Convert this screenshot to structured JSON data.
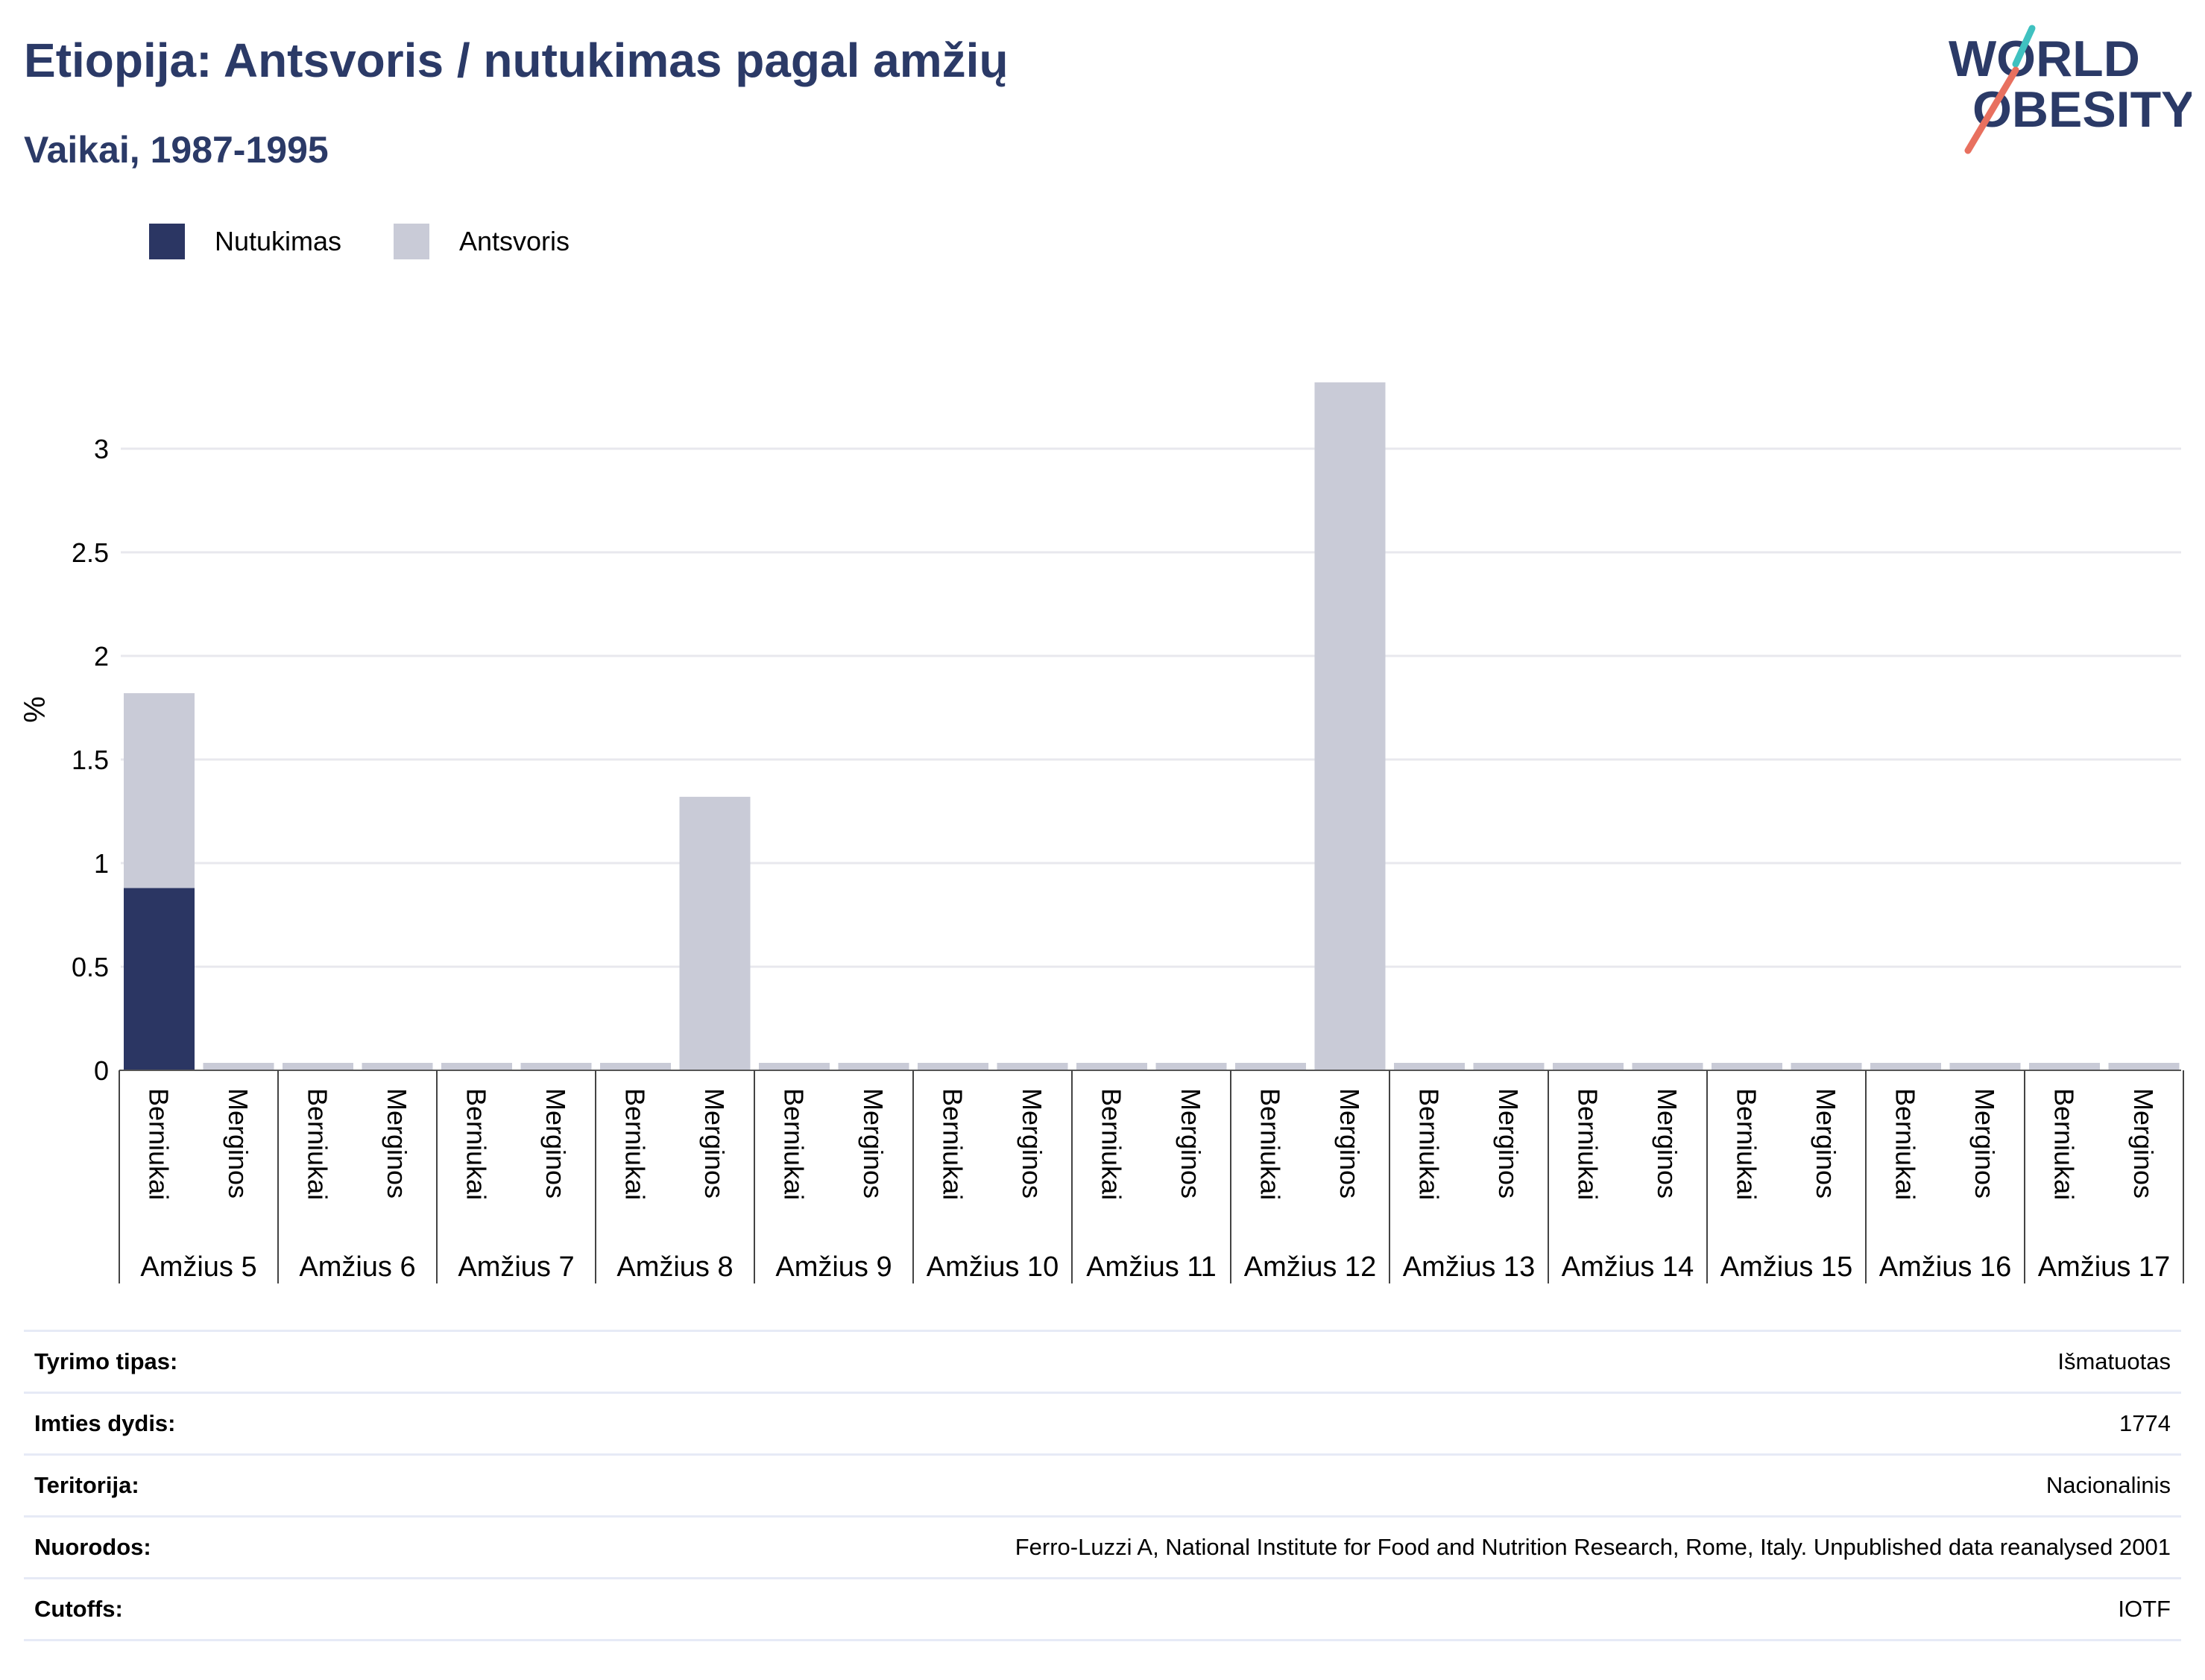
{
  "header": {
    "title": "Etiopija: Antsvoris / nutukimas pagal amžių",
    "subtitle": "Vaikai, 1987-1995"
  },
  "logo": {
    "line1": "WORLD",
    "line2": "OBESITY"
  },
  "colors": {
    "title": "#2b3a67",
    "obesity": "#2b3663",
    "overweight": "#c9cbd7",
    "grid": "#e8e8ee",
    "logo_teal": "#3fc1c0",
    "logo_coral": "#e8705f"
  },
  "chart_data": {
    "type": "bar",
    "stacked": true,
    "ylabel": "%",
    "ylim": [
      0,
      3.35
    ],
    "yticks": [
      "0",
      "0.5",
      "1",
      "1.5",
      "2",
      "2.5",
      "3"
    ],
    "ytick_values": [
      0,
      0.5,
      1,
      1.5,
      2,
      2.5,
      3
    ],
    "grid": true,
    "legend_position": "top-left",
    "groups": [
      "Amžius 5",
      "Amžius 6",
      "Amžius 7",
      "Amžius 8",
      "Amžius 9",
      "Amžius 10",
      "Amžius 11",
      "Amžius 12",
      "Amžius 13",
      "Amžius 14",
      "Amžius 15",
      "Amžius 16",
      "Amžius 17"
    ],
    "subcategories": [
      "Berniukai",
      "Merginos"
    ],
    "series": [
      {
        "name": "Nutukimas",
        "values": [
          0.88,
          0,
          0,
          0,
          0,
          0,
          0,
          0,
          0,
          0,
          0,
          0,
          0,
          0,
          0,
          0,
          0,
          0,
          0,
          0,
          0,
          0,
          0,
          0,
          0,
          0
        ]
      },
      {
        "name": "Antsvoris",
        "values": [
          0.94,
          0,
          0,
          0,
          0,
          0,
          0,
          1.32,
          0,
          0,
          0,
          0,
          0,
          0,
          0,
          3.32,
          0,
          0,
          0,
          0,
          0,
          0,
          0,
          0,
          0,
          0
        ]
      }
    ]
  },
  "info": [
    {
      "key": "Tyrimo tipas:",
      "value": "Išmatuotas"
    },
    {
      "key": "Imties dydis:",
      "value": "1774"
    },
    {
      "key": "Teritorija:",
      "value": "Nacionalinis"
    },
    {
      "key": "Nuorodos:",
      "value": "Ferro-Luzzi A, National Institute for Food and Nutrition Research, Rome, Italy. Unpublished data reanalysed 2001"
    },
    {
      "key": "Cutoffs:",
      "value": "IOTF"
    }
  ]
}
